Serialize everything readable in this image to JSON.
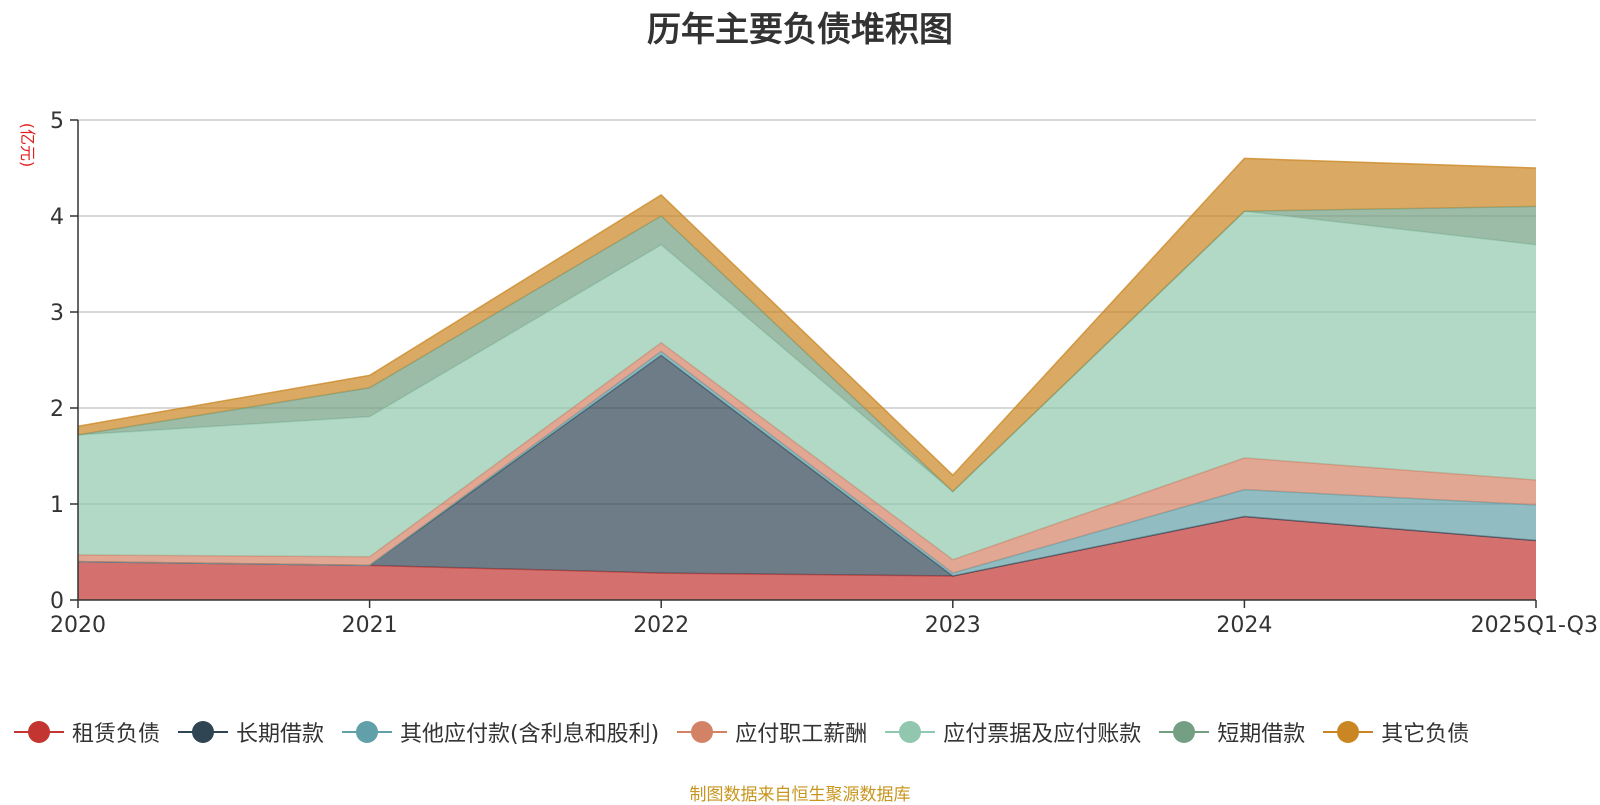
{
  "chart_data": {
    "type": "area",
    "title": "历年主要负债堆积图",
    "ylabel": "(亿元)",
    "xlabel": "",
    "categories": [
      "2020",
      "2021",
      "2022",
      "2023",
      "2024",
      "2025Q1-Q3"
    ],
    "ylim": [
      0,
      5
    ],
    "yticks": [
      "0",
      "1",
      "2",
      "3",
      "4",
      "5"
    ],
    "stacked": true,
    "grid": true,
    "legend_position": "bottom",
    "series": [
      {
        "name": "租赁负债",
        "color": "#c23531",
        "values": [
          0.4,
          0.36,
          0.28,
          0.25,
          0.87,
          0.62
        ]
      },
      {
        "name": "长期借款",
        "color": "#2f4554",
        "values": [
          0.0,
          0.0,
          2.27,
          0.0,
          0.0,
          0.0
        ]
      },
      {
        "name": "其他应付款(含利息和股利)",
        "color": "#61a0a8",
        "values": [
          0.0,
          0.0,
          0.04,
          0.03,
          0.28,
          0.37
        ]
      },
      {
        "name": "应付职工薪酬",
        "color": "#d48265",
        "values": [
          0.07,
          0.09,
          0.09,
          0.14,
          0.33,
          0.26
        ]
      },
      {
        "name": "应付票据及应付账款",
        "color": "#91c7ae",
        "values": [
          1.25,
          1.46,
          1.02,
          0.71,
          2.57,
          2.45
        ]
      },
      {
        "name": "短期借款",
        "color": "#749f83",
        "values": [
          0.0,
          0.3,
          0.3,
          0.0,
          0.0,
          0.4
        ]
      },
      {
        "name": "其它负债",
        "color": "#ca8622",
        "values": [
          0.09,
          0.13,
          0.22,
          0.17,
          0.55,
          0.4
        ]
      }
    ]
  },
  "footer": {
    "source": "制图数据来自恒生聚源数据库"
  }
}
